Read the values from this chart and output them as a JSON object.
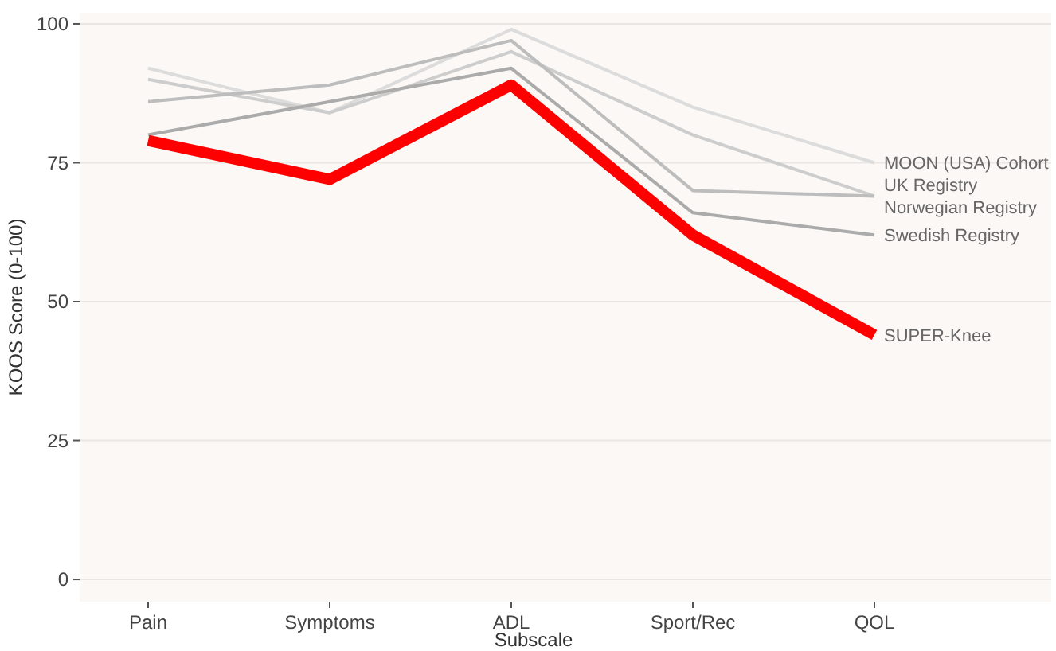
{
  "chart_data": {
    "type": "line",
    "xlabel": "Subscale",
    "ylabel": "KOOS Score (0-100)",
    "categories": [
      "Pain",
      "Symptoms",
      "ADL",
      "Sport/Rec",
      "QOL"
    ],
    "series": [
      {
        "name": "MOON (USA) Cohort",
        "color": "#dcdcdc",
        "values": [
          92,
          84,
          99,
          85,
          75
        ]
      },
      {
        "name": "UK Registry",
        "color": "#cdcdcd",
        "values": [
          90,
          84,
          95,
          80,
          69
        ]
      },
      {
        "name": "Norwegian Registry",
        "color": "#bdbdbd",
        "values": [
          86,
          89,
          97,
          70,
          69
        ]
      },
      {
        "name": "Swedish Registry",
        "color": "#ababab",
        "values": [
          80,
          86,
          92,
          66,
          62
        ]
      },
      {
        "name": "SUPER-Knee",
        "color": "#ff0000",
        "values": [
          79,
          72,
          89,
          62,
          44
        ]
      }
    ],
    "ylim": [
      -4,
      102
    ],
    "yticks": [
      0,
      25,
      50,
      75,
      100
    ],
    "grid": "y",
    "legend": false,
    "marker": "none",
    "line_style": "solid"
  }
}
